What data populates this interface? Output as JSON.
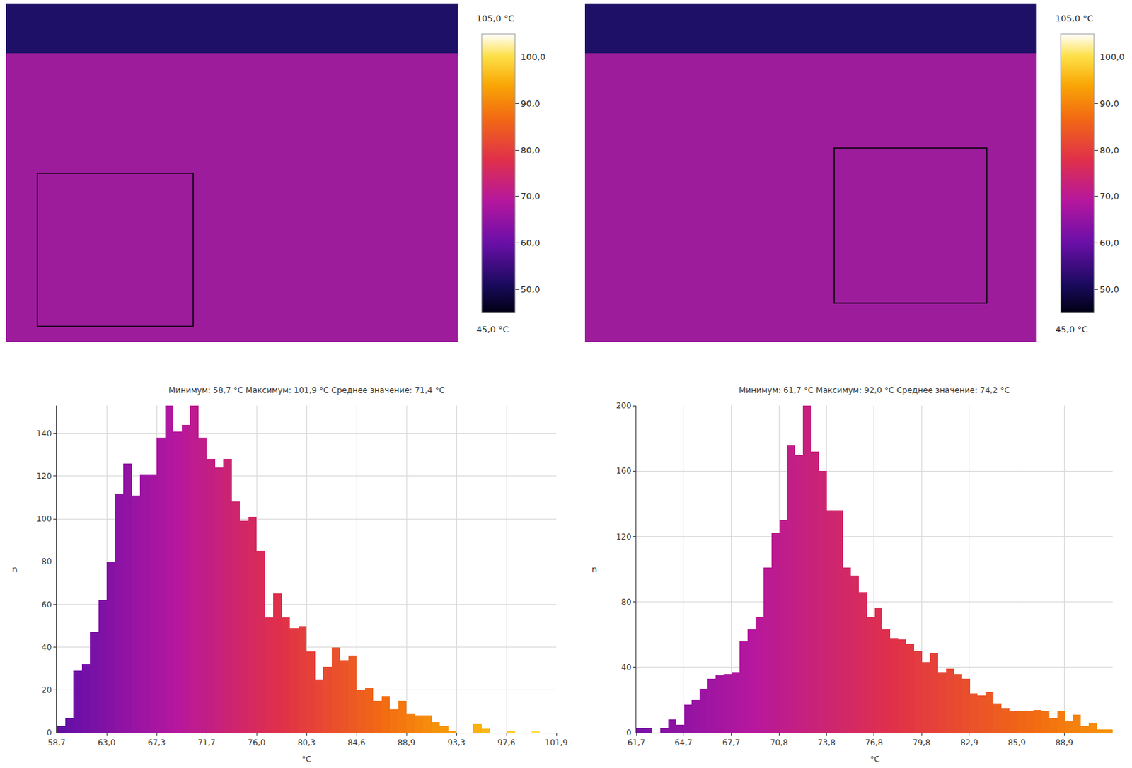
{
  "chart_data": [
    {
      "type": "thermal_image",
      "colorbar": {
        "range": [
          45,
          105
        ],
        "ticks": [
          {
            "value": 50,
            "label": "50,0"
          },
          {
            "value": 60,
            "label": "60,0"
          },
          {
            "value": 70,
            "label": "70,0"
          },
          {
            "value": 80,
            "label": "80,0"
          },
          {
            "value": 90,
            "label": "90,0"
          },
          {
            "value": 100,
            "label": "100,0"
          }
        ],
        "range_labels": [
          "45,0 °C",
          "105,0 °C"
        ]
      }
    },
    {
      "type": "thermal_image",
      "colorbar": {
        "range": [
          45,
          105
        ],
        "ticks": [
          {
            "value": 50,
            "label": "50,0"
          },
          {
            "value": 60,
            "label": "60,0"
          },
          {
            "value": 70,
            "label": "70,0"
          },
          {
            "value": 80,
            "label": "80,0"
          },
          {
            "value": 90,
            "label": "90,0"
          },
          {
            "value": 100,
            "label": "100,0"
          }
        ],
        "range_labels": [
          "45,0 °C",
          "105,0 °C"
        ]
      }
    },
    {
      "type": "histogram",
      "title": "Минимум: 58,7 °C Максимум: 101,9 °C Среднее значение: 71,4 °C",
      "x_label": "°C",
      "y_label": "n",
      "bins": [
        58.7,
        59.42,
        60.14,
        60.86,
        61.58,
        62.3,
        63.02,
        63.74,
        64.46,
        65.18,
        65.9,
        66.62,
        67.34,
        68.06,
        68.78,
        69.5,
        70.22,
        70.94,
        71.66,
        72.38,
        73.1,
        73.82,
        74.54,
        75.26,
        75.98,
        76.7,
        77.42,
        78.14,
        78.86,
        79.58,
        80.3,
        81.02,
        81.74,
        82.46,
        83.18,
        83.9,
        84.62,
        85.34,
        86.06,
        86.78,
        87.5,
        88.22,
        88.94,
        89.66,
        90.38,
        91.1,
        91.82,
        92.54,
        93.26,
        93.98,
        94.7,
        95.42,
        96.14,
        96.86,
        97.58,
        98.3,
        99.02,
        99.74,
        100.46,
        101.18,
        101.9
      ],
      "values": [
        3,
        7,
        29,
        32,
        47,
        62,
        80,
        112,
        126,
        111,
        121,
        121,
        138,
        153,
        141,
        144,
        153,
        138,
        128,
        124,
        128,
        108,
        99,
        101,
        85,
        54,
        65,
        54,
        49,
        50,
        38,
        25,
        31,
        40,
        34,
        36,
        20,
        21,
        15,
        17,
        11,
        15,
        9,
        8,
        8,
        5,
        3,
        1,
        0,
        0,
        4,
        2,
        0,
        0,
        1,
        0,
        0,
        1,
        0,
        0
      ],
      "xlim": [
        58.7,
        101.9
      ],
      "xticks": [
        {
          "value": 58.7,
          "label": "58,7"
        },
        {
          "value": 63.02,
          "label": "63,0"
        },
        {
          "value": 67.34,
          "label": "67,3"
        },
        {
          "value": 71.66,
          "label": "71,7"
        },
        {
          "value": 75.98,
          "label": "76,0"
        },
        {
          "value": 80.3,
          "label": "80,3"
        },
        {
          "value": 84.62,
          "label": "84,6"
        },
        {
          "value": 88.94,
          "label": "88,9"
        },
        {
          "value": 93.26,
          "label": "93,3"
        },
        {
          "value": 97.58,
          "label": "97,6"
        },
        {
          "value": 101.9,
          "label": "101,9"
        }
      ],
      "ylim": [
        0,
        153
      ],
      "yticks": [
        0,
        20,
        40,
        60,
        80,
        100,
        120,
        140
      ],
      "grid": true
    },
    {
      "type": "histogram",
      "title": "Минимум: 61,7 °C Максимум: 92,0 °C Среднее значение: 74,2 °C",
      "x_label": "°C",
      "y_label": "n",
      "bins": [
        61.7,
        62.205,
        62.71,
        63.215,
        63.72,
        64.225,
        64.73,
        65.235,
        65.74,
        66.245,
        66.75,
        67.255,
        67.76,
        68.265,
        68.77,
        69.275,
        69.78,
        70.285,
        70.79,
        71.295,
        71.8,
        72.305,
        72.81,
        73.315,
        73.82,
        74.325,
        74.83,
        75.335,
        75.84,
        76.345,
        76.85,
        77.355,
        77.86,
        78.365,
        78.87,
        79.375,
        79.88,
        80.385,
        80.89,
        81.395,
        81.9,
        82.405,
        82.91,
        83.415,
        83.92,
        84.425,
        84.93,
        85.435,
        85.94,
        86.445,
        86.95,
        87.455,
        87.96,
        88.465,
        88.97,
        89.475,
        89.98,
        90.485,
        90.99,
        91.495,
        92.0
      ],
      "values": [
        3,
        3,
        0,
        3,
        8,
        5,
        17,
        20,
        27,
        33,
        35,
        36,
        37,
        56,
        63,
        71,
        101,
        122,
        130,
        176,
        170,
        200,
        172,
        160,
        136,
        136,
        101,
        96,
        86,
        71,
        76,
        63,
        58,
        57,
        54,
        50,
        43,
        49,
        37,
        39,
        36,
        33,
        24,
        23,
        25,
        18,
        15,
        13,
        13,
        13,
        14,
        13,
        9,
        13,
        7,
        11,
        4,
        6,
        2,
        2
      ],
      "xlim": [
        61.7,
        92.0
      ],
      "xticks": [
        {
          "value": 61.7,
          "label": "61,7"
        },
        {
          "value": 64.7,
          "label": "64,7"
        },
        {
          "value": 67.74,
          "label": "67,7"
        },
        {
          "value": 70.78,
          "label": "70,8"
        },
        {
          "value": 73.8,
          "label": "73,8"
        },
        {
          "value": 76.82,
          "label": "76,8"
        },
        {
          "value": 79.84,
          "label": "79,8"
        },
        {
          "value": 82.88,
          "label": "82,9"
        },
        {
          "value": 85.9,
          "label": "85,9"
        },
        {
          "value": 88.92,
          "label": "88,9"
        }
      ],
      "ylim": [
        0,
        200
      ],
      "yticks": [
        0,
        40,
        80,
        120,
        160,
        200
      ],
      "grid": true
    }
  ]
}
